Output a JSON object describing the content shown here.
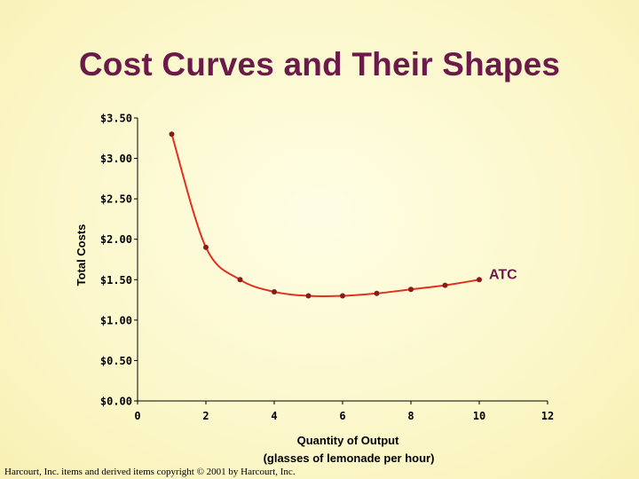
{
  "slide": {
    "title": "Cost Curves and Their Shapes",
    "copyright": "Harcourt, Inc. items and derived items copyright © 2001 by Harcourt, Inc."
  },
  "colors": {
    "title": "#6b1a4a",
    "curve": "#e0301e",
    "marker": "#8b1a1a",
    "axis_text": "#000000"
  },
  "chart_data": {
    "type": "line",
    "title": "",
    "xlabel": [
      "Quantity of Output",
      "(glasses of lemonade per hour)"
    ],
    "ylabel": "Total Costs",
    "xlim": [
      0,
      12
    ],
    "ylim": [
      0,
      3.5
    ],
    "x_ticks": [
      0,
      2,
      4,
      6,
      8,
      10,
      12
    ],
    "y_ticks": [
      {
        "value": 0.0,
        "label": "$0.00"
      },
      {
        "value": 0.5,
        "label": "$0.50"
      },
      {
        "value": 1.0,
        "label": "$1.00"
      },
      {
        "value": 1.5,
        "label": "$1.50"
      },
      {
        "value": 2.0,
        "label": "$2.00"
      },
      {
        "value": 2.5,
        "label": "$2.50"
      },
      {
        "value": 3.0,
        "label": "$3.00"
      },
      {
        "value": 3.5,
        "label": "$3.50"
      }
    ],
    "grid": false,
    "series": [
      {
        "name": "ATC",
        "x": [
          1,
          2,
          3,
          4,
          5,
          6,
          7,
          8,
          9,
          10
        ],
        "y": [
          3.3,
          1.9,
          1.5,
          1.35,
          1.3,
          1.3,
          1.33,
          1.38,
          1.43,
          1.5
        ]
      }
    ]
  }
}
